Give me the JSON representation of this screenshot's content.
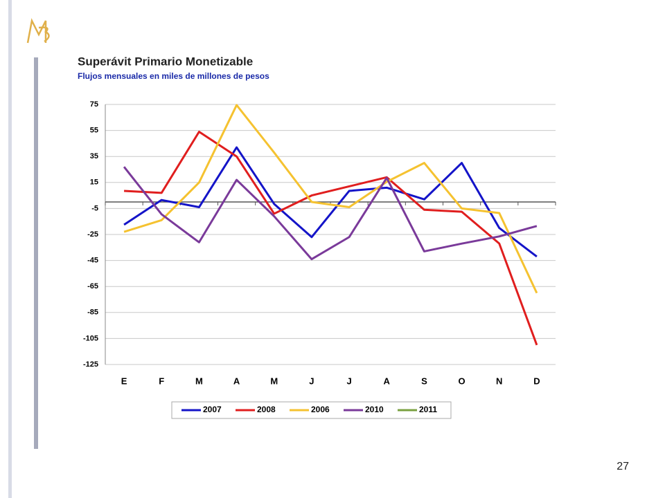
{
  "chart_data": {
    "type": "line",
    "title": "Superávit Primario Monetizable",
    "subtitle": "Flujos mensuales en miles de millones de pesos",
    "categories": [
      "E",
      "F",
      "M",
      "A",
      "M",
      "J",
      "J",
      "A",
      "S",
      "O",
      "N",
      "D"
    ],
    "series": [
      {
        "name": "2007",
        "color": "#1414c8",
        "values": [
          -17.5,
          1.5,
          -4,
          42,
          -1.5,
          -27,
          8.5,
          11,
          2,
          30,
          -20,
          -42
        ]
      },
      {
        "name": "2008",
        "color": "#e01e1e",
        "values": [
          8.5,
          7,
          54,
          35,
          -9,
          5,
          12,
          19,
          -6,
          -7.5,
          -32,
          -110
        ]
      },
      {
        "name": "2006",
        "color": "#f5c230",
        "values": [
          -23,
          -14,
          15,
          74.5,
          38,
          0,
          -4,
          15.5,
          30,
          -5,
          -8.5,
          -70
        ]
      },
      {
        "name": "2010",
        "color": "#7a3a9a",
        "values": [
          27,
          -9.5,
          -31,
          17,
          -11,
          -44,
          -27,
          18.5,
          -38,
          -32,
          -26.5,
          -18.5
        ]
      },
      {
        "name": "2011",
        "color": "#7aa040",
        "values": [
          null,
          null,
          null,
          null,
          null,
          null,
          null,
          null,
          null,
          null,
          null,
          null
        ]
      }
    ],
    "ylim": [
      -125,
      75
    ],
    "yticks": [
      -125,
      -105,
      -85,
      -65,
      -45,
      -25,
      -5,
      15,
      35,
      55,
      75
    ],
    "grid": true,
    "legend": "bottom"
  },
  "page_number": "27"
}
